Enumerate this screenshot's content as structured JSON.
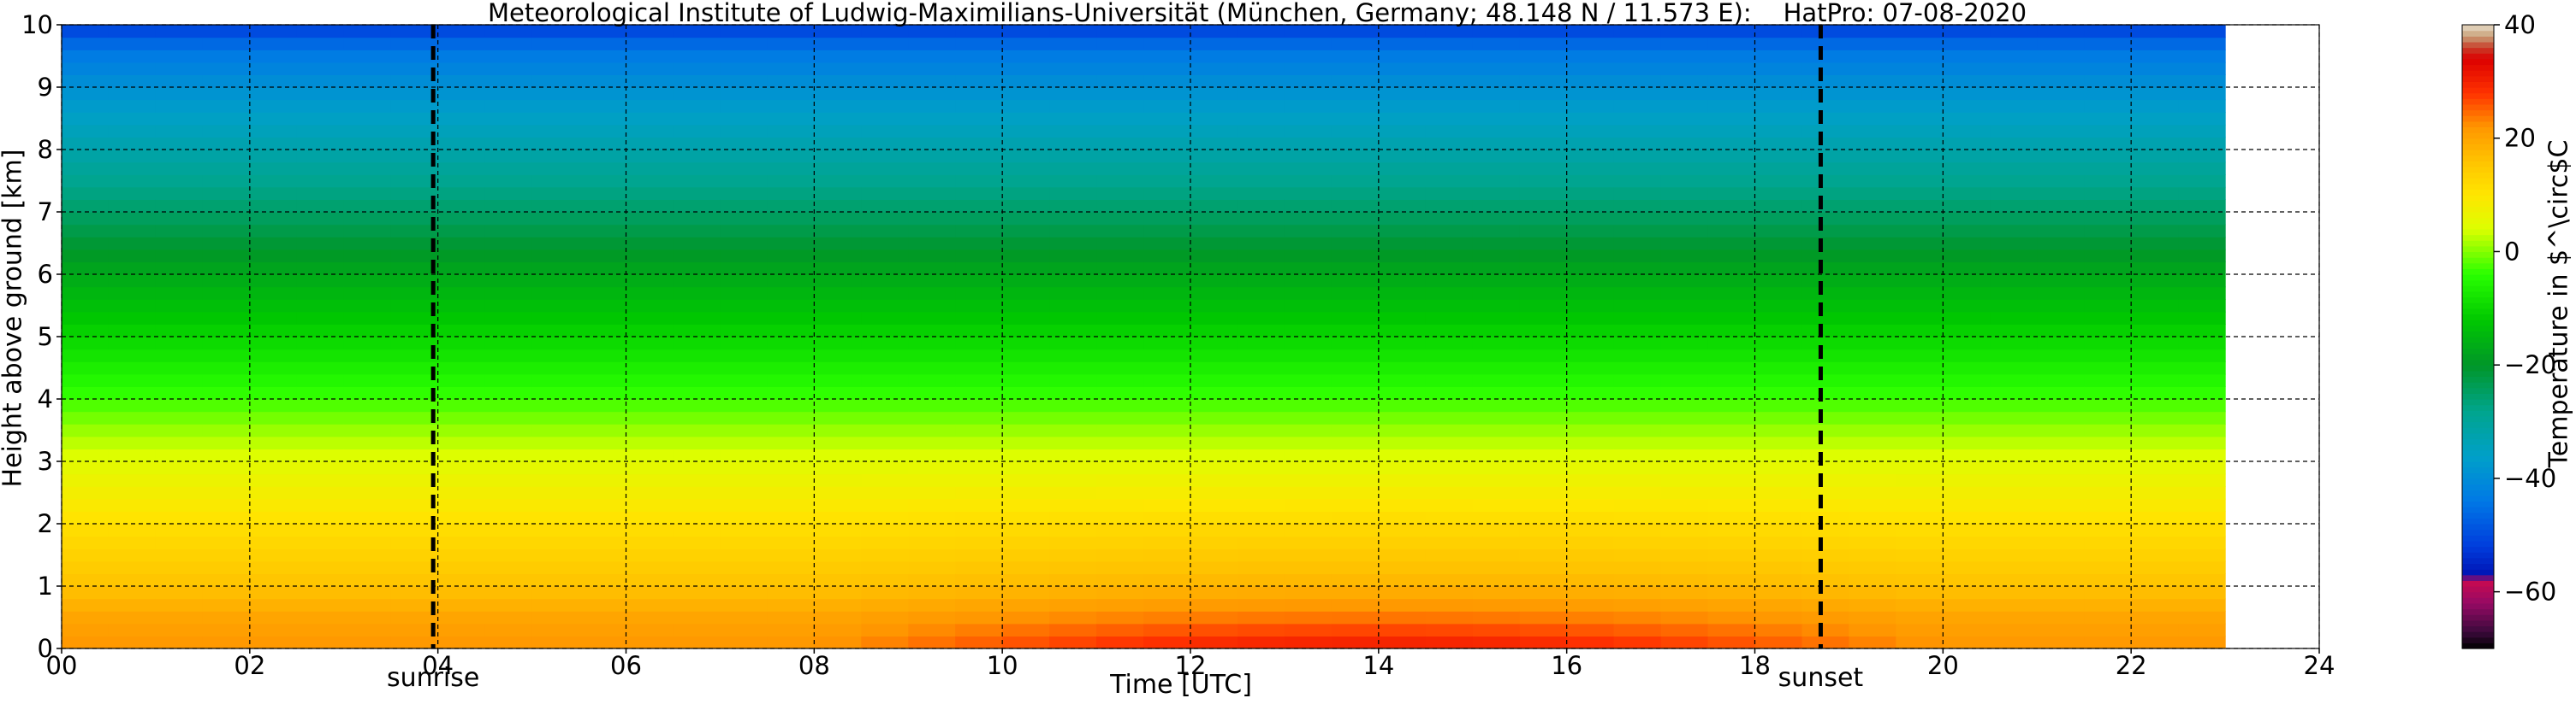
{
  "chart_data": {
    "type": "heatmap",
    "title": "Meteorological Institute of Ludwig-Maximilians-Universität (München, Germany; 48.148 N / 11.573 E):    HatPro: 07-08-2020",
    "xlabel": "Time [UTC]",
    "ylabel": "Height above ground [km]",
    "xlim": [
      0,
      24
    ],
    "ylim": [
      0,
      10
    ],
    "xticks": [
      "00",
      "02",
      "04",
      "06",
      "08",
      "10",
      "12",
      "14",
      "16",
      "18",
      "20",
      "22",
      "24"
    ],
    "yticks": [
      "0",
      "1",
      "2",
      "3",
      "4",
      "5",
      "6",
      "7",
      "8",
      "9",
      "10"
    ],
    "data_time_range": [
      0,
      23
    ],
    "grid": true,
    "colorbar": {
      "label": "Temperature in $^\\circ$C",
      "range": [
        -70,
        40
      ],
      "ticks": [
        "40",
        "20",
        "0",
        "−20",
        "−40",
        "−60"
      ],
      "tick_values": [
        40,
        20,
        0,
        -20,
        -40,
        -60
      ]
    },
    "temperature_profile": [
      {
        "height_km": 0.0,
        "early_c": 22,
        "afternoon_c": 31
      },
      {
        "height_km": 0.5,
        "early_c": 20,
        "afternoon_c": 24
      },
      {
        "height_km": 1.0,
        "early_c": 16,
        "afternoon_c": 18
      },
      {
        "height_km": 2.0,
        "early_c": 11,
        "afternoon_c": 12
      },
      {
        "height_km": 3.0,
        "early_c": 5,
        "afternoon_c": 5
      },
      {
        "height_km": 4.0,
        "early_c": -3,
        "afternoon_c": -3
      },
      {
        "height_km": 5.0,
        "early_c": -10,
        "afternoon_c": -10
      },
      {
        "height_km": 6.0,
        "early_c": -17,
        "afternoon_c": -17
      },
      {
        "height_km": 7.0,
        "early_c": -25,
        "afternoon_c": -25
      },
      {
        "height_km": 8.0,
        "early_c": -32,
        "afternoon_c": -32
      },
      {
        "height_km": 9.0,
        "early_c": -39,
        "afternoon_c": -39
      },
      {
        "height_km": 9.6,
        "early_c": -44,
        "afternoon_c": -44
      },
      {
        "height_km": 10.0,
        "early_c": -52,
        "afternoon_c": -52
      }
    ],
    "annotations": [
      {
        "text": "sunrise",
        "time_utc": 3.95
      },
      {
        "text": "sunset",
        "time_utc": 18.7
      }
    ]
  }
}
